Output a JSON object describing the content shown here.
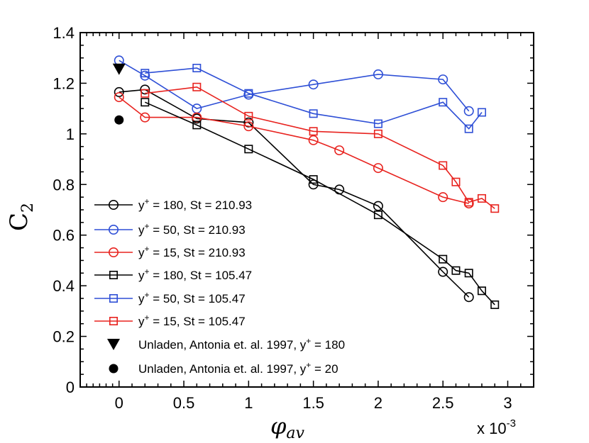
{
  "chart_data": {
    "type": "line",
    "ylabel": "C",
    "ylabel_sub": "2",
    "xlabel_symbol": "φ",
    "xlabel_sub": "av",
    "x_multiplier_label": "x 10",
    "x_multiplier_exp": "-3",
    "xlim": [
      -0.3,
      3.2
    ],
    "ylim": [
      0,
      1.4
    ],
    "x_ticks": [
      0,
      0.5,
      1,
      1.5,
      2,
      2.5,
      3
    ],
    "x_tick_labels": [
      "0",
      "0.5",
      "1",
      "1.5",
      "2",
      "2.5",
      "3"
    ],
    "y_ticks": [
      0,
      0.2,
      0.4,
      0.6,
      0.8,
      1.0,
      1.2,
      1.4
    ],
    "y_tick_labels": [
      "0",
      "0.2",
      "0.4",
      "0.6",
      "0.8",
      "1",
      "1.2",
      "1.4"
    ],
    "grid": false,
    "legend_position": "bottom-left",
    "series": [
      {
        "name_prefix": "y",
        "name_sup": "+",
        "name_suffix": " = 180, St = 210.93",
        "color": "#000000",
        "marker": "circle",
        "x": [
          0,
          0.2,
          0.6,
          1.0,
          1.5,
          1.7,
          2.0,
          2.5,
          2.7
        ],
        "y": [
          1.165,
          1.175,
          1.06,
          1.045,
          0.8,
          0.78,
          0.715,
          0.455,
          0.355
        ]
      },
      {
        "name_prefix": "y",
        "name_sup": "+",
        "name_suffix": " = 50, St = 210.93",
        "color": "#2e4fd6",
        "marker": "circle",
        "x": [
          0,
          0.2,
          0.6,
          1.0,
          1.5,
          2.0,
          2.5,
          2.7
        ],
        "y": [
          1.29,
          1.23,
          1.1,
          1.155,
          1.195,
          1.235,
          1.215,
          1.09
        ]
      },
      {
        "name_prefix": "y",
        "name_sup": "+",
        "name_suffix": " = 15, St = 210.93",
        "color": "#e8231f",
        "marker": "circle",
        "x": [
          0,
          0.2,
          0.6,
          1.0,
          1.5,
          1.7,
          2.0,
          2.5,
          2.7
        ],
        "y": [
          1.145,
          1.065,
          1.065,
          1.03,
          0.975,
          0.935,
          0.865,
          0.75,
          0.725
        ]
      },
      {
        "name_prefix": "y",
        "name_sup": "+",
        "name_suffix": " = 180, St = 105.47",
        "color": "#000000",
        "marker": "square",
        "x": [
          0.2,
          0.6,
          1.0,
          1.5,
          2.0,
          2.5,
          2.6,
          2.7,
          2.8,
          2.9
        ],
        "y": [
          1.125,
          1.035,
          0.94,
          0.82,
          0.68,
          0.505,
          0.46,
          0.45,
          0.38,
          0.325
        ]
      },
      {
        "name_prefix": "y",
        "name_sup": "+",
        "name_suffix": " = 50, St = 105.47",
        "color": "#2e4fd6",
        "marker": "square",
        "x": [
          0.2,
          0.6,
          1.0,
          1.5,
          2.0,
          2.5,
          2.7,
          2.8
        ],
        "y": [
          1.24,
          1.26,
          1.16,
          1.08,
          1.04,
          1.125,
          1.02,
          1.085
        ]
      },
      {
        "name_prefix": "y",
        "name_sup": "+",
        "name_suffix": " = 15, St = 105.47",
        "color": "#e8231f",
        "marker": "square",
        "x": [
          0.2,
          0.6,
          1.0,
          1.5,
          2.0,
          2.5,
          2.6,
          2.7,
          2.8,
          2.9
        ],
        "y": [
          1.16,
          1.185,
          1.07,
          1.01,
          1.0,
          0.875,
          0.81,
          0.73,
          0.745,
          0.705
        ]
      }
    ],
    "reference_points": [
      {
        "label": "Unladen, Antonia et. al. 1997, y",
        "label_sup": "+",
        "label_suffix": " = 180",
        "marker": "triangle-down",
        "color": "#000000",
        "x": 0,
        "y": 1.255
      },
      {
        "label": "Unladen, Antonia et. al. 1997, y",
        "label_sup": "+",
        "label_suffix": " = 20",
        "marker": "filled-circle",
        "color": "#000000",
        "x": 0,
        "y": 1.055
      }
    ]
  }
}
